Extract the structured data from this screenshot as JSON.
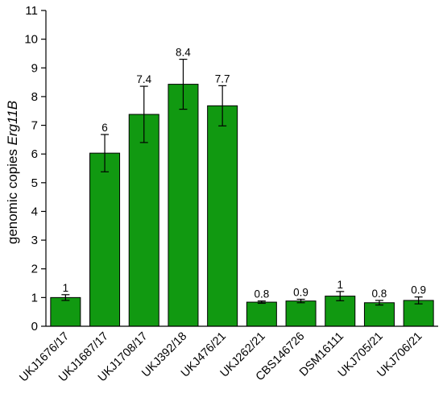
{
  "chart_data": {
    "type": "bar",
    "title": "",
    "ylabel_prefix": "genomic copies ",
    "ylabel_gene": "Erg11B",
    "xlabel": "",
    "ylim": [
      0,
      11
    ],
    "yticks": [
      0,
      1,
      2,
      3,
      4,
      5,
      6,
      7,
      8,
      9,
      10,
      11
    ],
    "grid": false,
    "legend": "none",
    "bar_color": "#119911",
    "categories": [
      "UKJ1676/17",
      "UKJ1687/17",
      "UKJ1708/17",
      "UKJ392/18",
      "UKJ476/21",
      "UKJ262/21",
      "CBS146726",
      "DSM16111",
      "UKJ705/21",
      "UKJ706/21"
    ],
    "values": [
      1.0,
      6.03,
      7.38,
      8.43,
      7.68,
      0.84,
      0.88,
      1.05,
      0.82,
      0.9
    ],
    "errors": [
      0.1,
      0.65,
      0.98,
      0.87,
      0.7,
      0.04,
      0.06,
      0.16,
      0.08,
      0.12
    ],
    "data_labels": [
      "1",
      "6",
      "7.4",
      "8.4",
      "7.7",
      "0.8",
      "0.9",
      "1",
      "0.8",
      "0.9"
    ]
  }
}
